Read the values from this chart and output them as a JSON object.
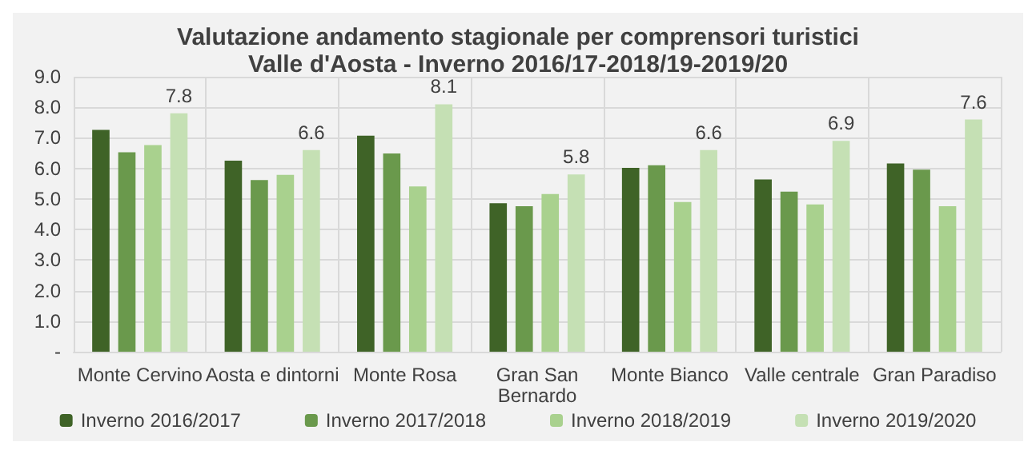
{
  "chart_data": {
    "type": "bar",
    "title": "Valutazione andamento stagionale per comprensori turistici\nValle d'Aosta - Inverno 2016/17-2018/19-2019/20",
    "categories": [
      "Monte Cervino",
      "Aosta e dintorni",
      "Monte Rosa",
      "Gran San\nBernardo",
      "Monte Bianco",
      "Valle centrale",
      "Gran Paradiso"
    ],
    "series": [
      {
        "name": "Inverno 2016/2017",
        "color": "#3f6327",
        "values": [
          7.26,
          6.25,
          7.07,
          4.86,
          6.02,
          5.64,
          6.16
        ]
      },
      {
        "name": "Inverno 2017/2018",
        "color": "#6a994c",
        "values": [
          6.53,
          5.62,
          6.49,
          4.76,
          6.1,
          5.24,
          5.96
        ]
      },
      {
        "name": "Inverno 2018/2019",
        "color": "#a9d18e",
        "values": [
          6.76,
          5.79,
          5.41,
          5.16,
          4.9,
          4.82,
          4.76
        ]
      },
      {
        "name": "Inverno 2019/2020",
        "color": "#c5e0b4",
        "values": [
          7.8,
          6.6,
          8.1,
          5.8,
          6.6,
          6.9,
          7.6
        ],
        "value_labels": [
          "7.8",
          "6.6",
          "8.1",
          "5.8",
          "6.6",
          "6.9",
          "7.6"
        ]
      }
    ],
    "ylim": [
      0,
      9
    ],
    "yticks": [
      {
        "value": 0,
        "label": "-"
      },
      {
        "value": 1,
        "label": "1.0"
      },
      {
        "value": 2,
        "label": "2.0"
      },
      {
        "value": 3,
        "label": "3.0"
      },
      {
        "value": 4,
        "label": "4.0"
      },
      {
        "value": 5,
        "label": "5.0"
      },
      {
        "value": 6,
        "label": "6.0"
      },
      {
        "value": 7,
        "label": "7.0"
      },
      {
        "value": 8,
        "label": "8.0"
      },
      {
        "value": 9,
        "label": "9.0"
      }
    ],
    "grid": true,
    "legend": "bottom"
  }
}
